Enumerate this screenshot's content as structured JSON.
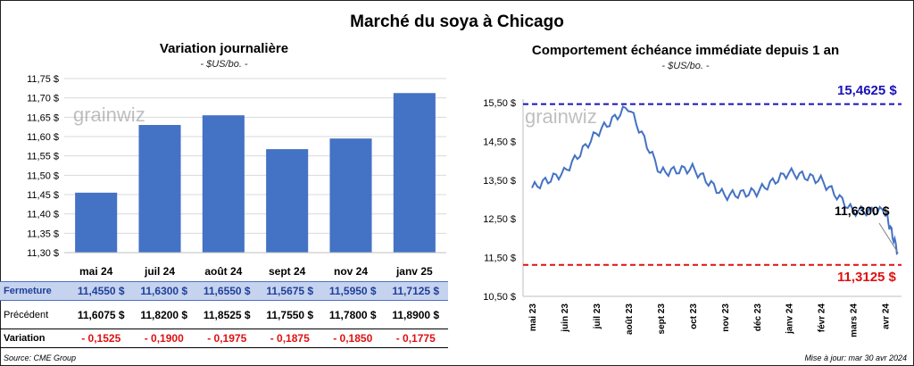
{
  "title": "Marché du soya à Chicago",
  "watermark": "grainwiz",
  "source": "Source: CME Group",
  "update": "Mise à jour: mar 30 avr 2024",
  "chart_data": [
    {
      "type": "bar",
      "title": "Variation  journalière",
      "unit": "- $US/bo. -",
      "categories": [
        "mai 24",
        "juil 24",
        "août 24",
        "sept 24",
        "nov 24",
        "janv 25"
      ],
      "values": [
        11.455,
        11.63,
        11.655,
        11.5675,
        11.595,
        11.7125
      ],
      "ylim": [
        11.3,
        11.75
      ],
      "yticks": [
        "11,30 $",
        "11,35 $",
        "11,40 $",
        "11,45 $",
        "11,50 $",
        "11,55 $",
        "11,60 $",
        "11,65 $",
        "11,70 $",
        "11,75 $"
      ],
      "bar_color": "#4472c4",
      "grid": true
    },
    {
      "type": "line",
      "title": "Comportement  échéance immédiate depuis 1 an",
      "unit": "- $US/bo. -",
      "ylim": [
        10.5,
        15.5
      ],
      "yticks": [
        "10,50 $",
        "11,50 $",
        "12,50 $",
        "13,50 $",
        "14,50 $",
        "15,50 $"
      ],
      "xticks": [
        "mai 23",
        "juin 23",
        "juil 23",
        "août 23",
        "sept 23",
        "oct 23",
        "nov 23",
        "déc 23",
        "janv 24",
        "févr 24",
        "mars 24",
        "avr 24"
      ],
      "line_color": "#4472c4",
      "series": [
        {
          "x": [
            0,
            1,
            2,
            3,
            4,
            5,
            6,
            7,
            8,
            9,
            10,
            11,
            11.4
          ],
          "values": [
            13.3,
            13.7,
            14.7,
            15.4,
            13.7,
            13.8,
            13.1,
            13.2,
            13.7,
            13.5,
            12.7,
            12.7,
            11.63
          ]
        }
      ],
      "high": {
        "value": 15.4625,
        "label": "15,4625 $",
        "color": "#1a12b8"
      },
      "low": {
        "value": 11.3125,
        "label": "11,3125 $",
        "color": "#e01010"
      },
      "last": {
        "value": 11.63,
        "label": "11,6300 $"
      }
    }
  ],
  "table": {
    "rows": [
      {
        "label": "Fermeture",
        "values": [
          "11,4550  $",
          "11,6300  $",
          "11,6550  $",
          "11,5675  $",
          "11,5950  $",
          "11,7125  $"
        ]
      },
      {
        "label": "Précédent",
        "values": [
          "11,6075  $",
          "11,8200  $",
          "11,8525  $",
          "11,7550  $",
          "11,7800  $",
          "11,8900  $"
        ]
      },
      {
        "label": "Variation",
        "values": [
          "- 0,1525",
          "- 0,1900",
          "- 0,1975",
          "- 0,1875",
          "- 0,1850",
          "- 0,1775"
        ]
      }
    ]
  }
}
